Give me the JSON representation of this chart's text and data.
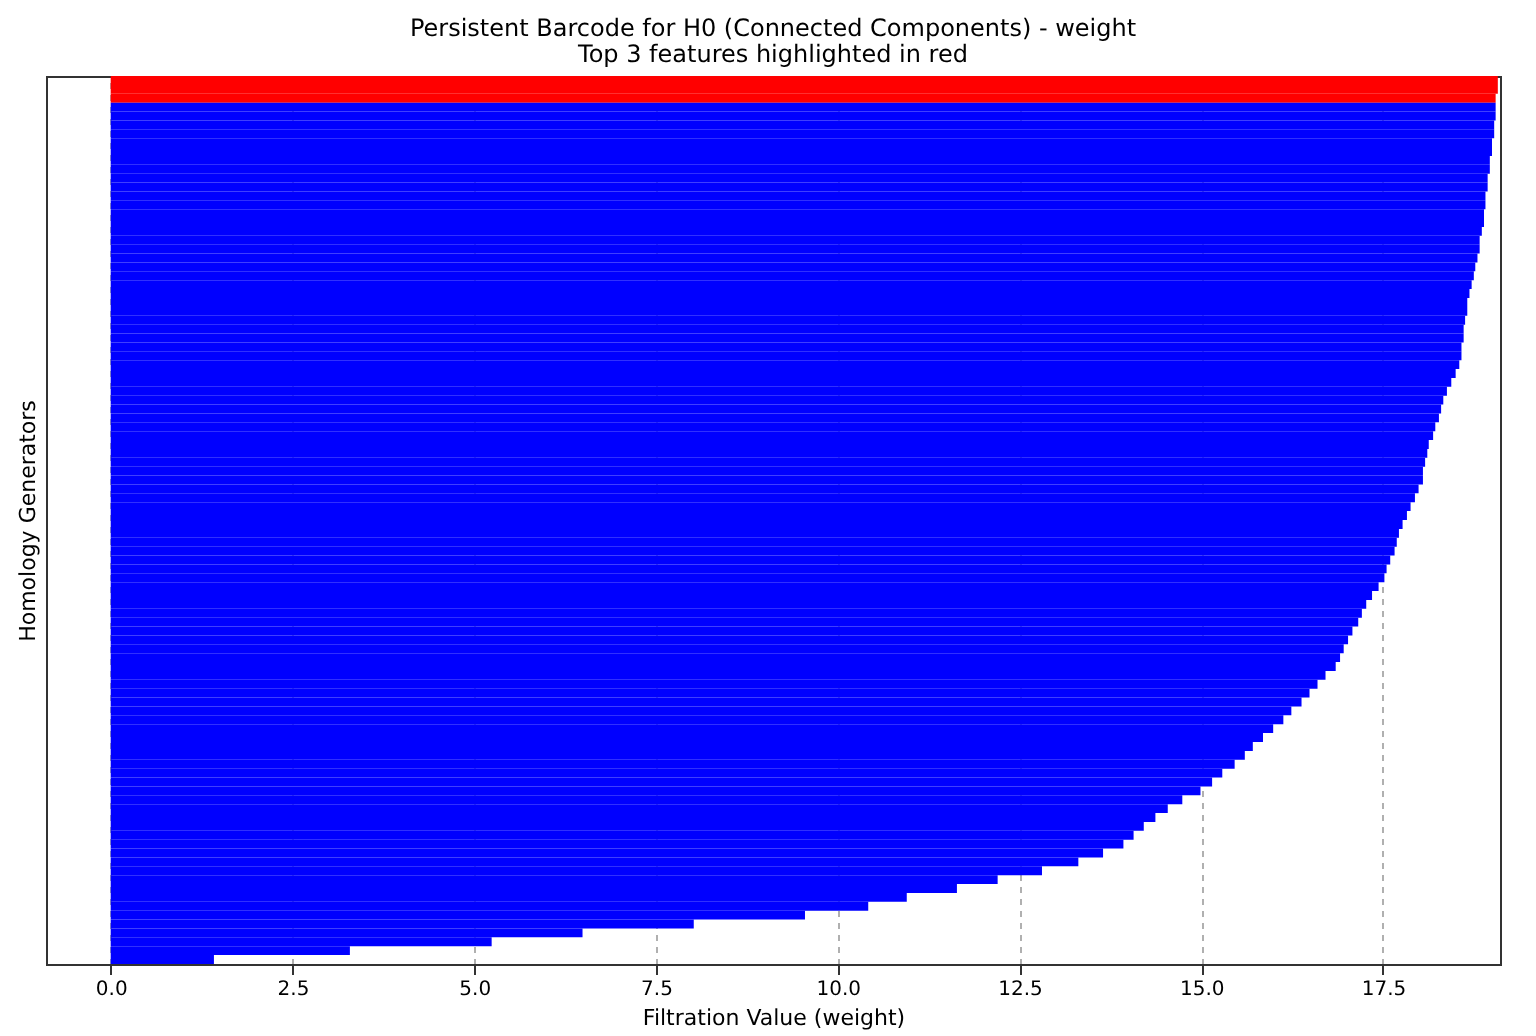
{
  "chart_data": {
    "type": "bar",
    "orientation": "horizontal",
    "title": "Persistent Barcode for H0 (Connected Components) - weight",
    "subtitle": "Top 3 features highlighted in red",
    "xlabel": "Filtration Value (weight)",
    "ylabel": "Homology Generators",
    "categories": [
      null,
      null,
      null,
      null,
      null,
      null,
      null,
      null,
      null,
      null,
      null,
      null,
      null,
      null,
      null,
      null,
      null,
      null,
      null,
      null,
      null,
      null,
      null,
      null,
      null,
      null,
      null,
      null,
      null,
      null,
      null,
      null,
      null,
      null,
      null,
      null,
      null,
      null,
      null,
      null,
      null,
      null,
      null,
      null,
      null,
      null,
      null,
      null,
      null,
      null,
      null,
      null,
      null,
      null,
      null,
      null,
      null,
      null,
      null,
      null,
      null,
      null,
      null,
      null,
      null,
      null,
      null,
      null,
      null,
      null,
      null,
      null,
      null,
      null,
      null,
      null,
      null,
      null,
      null,
      null,
      null,
      null,
      null,
      null,
      null,
      null,
      null,
      null,
      null,
      null,
      null,
      null,
      null,
      null,
      null,
      null,
      null,
      null,
      null,
      null
    ],
    "values": [
      19.08,
      19.08,
      19.05,
      19.05,
      19.05,
      19.03,
      19.03,
      19.0,
      19.0,
      18.97,
      18.97,
      18.94,
      18.94,
      18.91,
      18.91,
      18.89,
      18.89,
      18.86,
      18.83,
      18.83,
      18.8,
      18.77,
      18.75,
      18.72,
      18.69,
      18.66,
      18.66,
      18.63,
      18.61,
      18.61,
      18.58,
      18.58,
      18.55,
      18.5,
      18.44,
      18.38,
      18.33,
      18.3,
      18.27,
      18.22,
      18.19,
      18.13,
      18.11,
      18.08,
      18.05,
      18.05,
      17.99,
      17.94,
      17.88,
      17.83,
      17.77,
      17.72,
      17.69,
      17.66,
      17.6,
      17.55,
      17.52,
      17.44,
      17.35,
      17.27,
      17.21,
      17.16,
      17.08,
      17.02,
      16.96,
      16.91,
      16.85,
      16.71,
      16.6,
      16.49,
      16.38,
      16.24,
      16.13,
      15.99,
      15.85,
      15.71,
      15.6,
      15.46,
      15.29,
      15.15,
      14.99,
      14.74,
      14.54,
      14.37,
      14.21,
      14.07,
      13.93,
      13.65,
      13.31,
      12.81,
      12.2,
      11.64,
      10.95,
      10.42,
      9.55,
      8.02,
      6.49,
      5.24,
      3.29,
      1.42
    ],
    "colors": [
      "#ff0000",
      "#ff0000",
      "#ff0000",
      "#0000ff",
      "#0000ff",
      "#0000ff",
      "#0000ff",
      "#0000ff",
      "#0000ff",
      "#0000ff",
      "#0000ff",
      "#0000ff",
      "#0000ff",
      "#0000ff",
      "#0000ff",
      "#0000ff",
      "#0000ff",
      "#0000ff",
      "#0000ff",
      "#0000ff",
      "#0000ff",
      "#0000ff",
      "#0000ff",
      "#0000ff",
      "#0000ff",
      "#0000ff",
      "#0000ff",
      "#0000ff",
      "#0000ff",
      "#0000ff",
      "#0000ff",
      "#0000ff",
      "#0000ff",
      "#0000ff",
      "#0000ff",
      "#0000ff",
      "#0000ff",
      "#0000ff",
      "#0000ff",
      "#0000ff",
      "#0000ff",
      "#0000ff",
      "#0000ff",
      "#0000ff",
      "#0000ff",
      "#0000ff",
      "#0000ff",
      "#0000ff",
      "#0000ff",
      "#0000ff",
      "#0000ff",
      "#0000ff",
      "#0000ff",
      "#0000ff",
      "#0000ff",
      "#0000ff",
      "#0000ff",
      "#0000ff",
      "#0000ff",
      "#0000ff",
      "#0000ff",
      "#0000ff",
      "#0000ff",
      "#0000ff",
      "#0000ff",
      "#0000ff",
      "#0000ff",
      "#0000ff",
      "#0000ff",
      "#0000ff",
      "#0000ff",
      "#0000ff",
      "#0000ff",
      "#0000ff",
      "#0000ff",
      "#0000ff",
      "#0000ff",
      "#0000ff",
      "#0000ff",
      "#0000ff",
      "#0000ff",
      "#0000ff",
      "#0000ff",
      "#0000ff",
      "#0000ff",
      "#0000ff",
      "#0000ff",
      "#0000ff",
      "#0000ff",
      "#0000ff",
      "#0000ff",
      "#0000ff",
      "#0000ff",
      "#0000ff",
      "#0000ff",
      "#0000ff",
      "#0000ff",
      "#0000ff",
      "#0000ff",
      "#0000ff"
    ],
    "xlim": [
      -0.89,
      19.11
    ],
    "xticks": [
      {
        "value": 0,
        "label": "0.0"
      },
      {
        "value": 2.5,
        "label": "2.5"
      },
      {
        "value": 5,
        "label": "5.0"
      },
      {
        "value": 7.5,
        "label": "7.5"
      },
      {
        "value": 10,
        "label": "10.0"
      },
      {
        "value": 12.5,
        "label": "12.5"
      },
      {
        "value": 15,
        "label": "15.0"
      },
      {
        "value": 17.5,
        "label": "17.5"
      }
    ],
    "grid": "x",
    "tick_labels": "x"
  }
}
